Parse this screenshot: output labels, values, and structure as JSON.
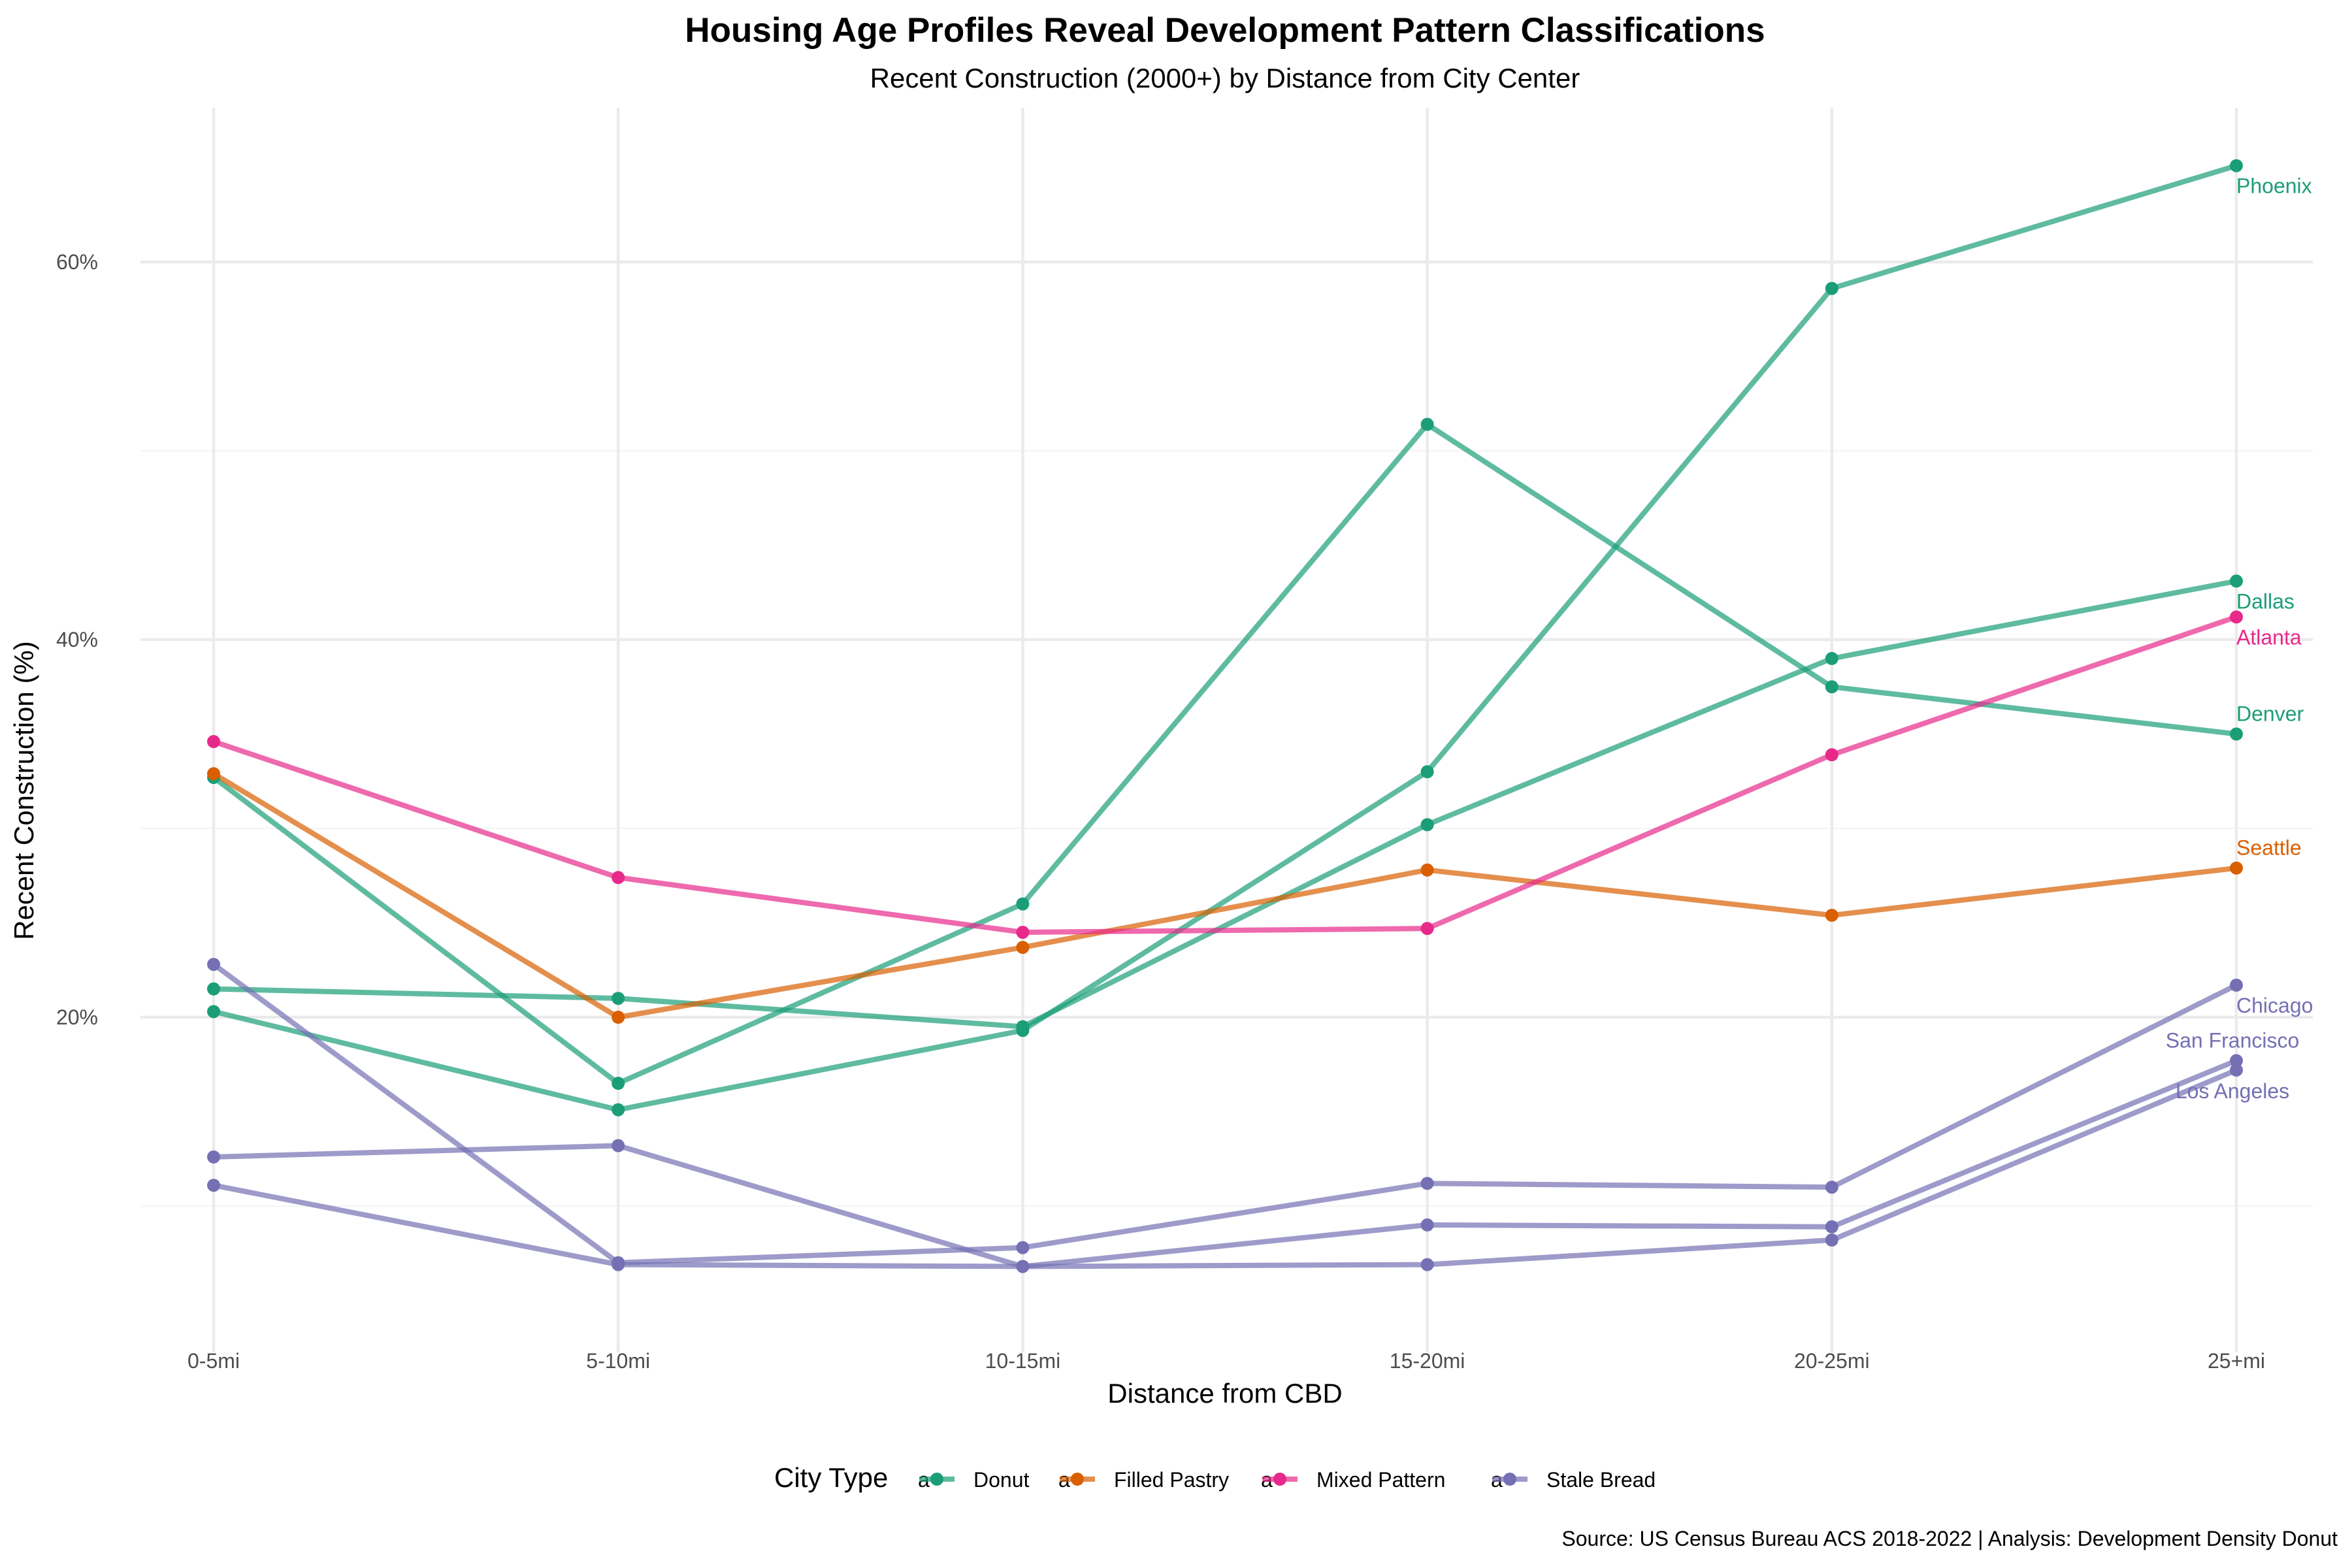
{
  "chart_data": {
    "type": "line",
    "title": "Housing Age Profiles Reveal Development Pattern Classifications",
    "subtitle": "Recent Construction (2000+) by Distance from City Center",
    "xlabel": "Distance from CBD",
    "ylabel": "Recent Construction (%)",
    "categories": [
      "0-5mi",
      "5-10mi",
      "10-15mi",
      "15-20mi",
      "20-25mi",
      "25+mi"
    ],
    "ylim": [
      2,
      68
    ],
    "yticks": [
      20,
      40,
      60
    ],
    "ytick_labels": [
      "20%",
      "40%",
      "60%"
    ],
    "grid": true,
    "legend": {
      "title": "City Type",
      "position": "bottom",
      "key_glyph": "a",
      "entries": [
        {
          "name": "Donut",
          "color": "#1b9e77"
        },
        {
          "name": "Filled Pastry",
          "color": "#d95f02"
        },
        {
          "name": "Mixed Pattern",
          "color": "#e7298a"
        },
        {
          "name": "Stale Bread",
          "color": "#7570b3"
        }
      ]
    },
    "series": [
      {
        "name": "Phoenix",
        "type": "Donut",
        "values": [
          20.3,
          15.1,
          19.3,
          33.0,
          58.6,
          65.1
        ]
      },
      {
        "name": "Dallas",
        "type": "Donut",
        "values": [
          21.5,
          21.0,
          19.5,
          30.2,
          39.0,
          43.1
        ]
      },
      {
        "name": "Denver",
        "type": "Donut",
        "values": [
          32.7,
          16.5,
          26.0,
          51.4,
          37.5,
          35.0
        ]
      },
      {
        "name": "Seattle",
        "type": "Filled Pastry",
        "values": [
          32.9,
          20.0,
          23.7,
          27.8,
          25.4,
          27.9
        ]
      },
      {
        "name": "Atlanta",
        "type": "Mixed Pattern",
        "values": [
          34.6,
          27.4,
          24.5,
          24.7,
          33.9,
          41.2
        ]
      },
      {
        "name": "Chicago",
        "type": "Stale Bread",
        "values": [
          22.8,
          7.0,
          7.8,
          11.2,
          11.0,
          21.7
        ]
      },
      {
        "name": "San Francisco",
        "type": "Stale Bread",
        "values": [
          12.6,
          13.2,
          6.8,
          9.0,
          8.9,
          17.7
        ]
      },
      {
        "name": "Los Angeles",
        "type": "Stale Bread",
        "values": [
          11.1,
          6.9,
          6.8,
          6.9,
          8.2,
          17.2
        ]
      }
    ],
    "labels": [
      {
        "text": "Phoenix",
        "series": "Phoenix",
        "color": "#1b9e77",
        "anchor": "start"
      },
      {
        "text": "Dallas",
        "series": "Dallas",
        "color": "#1b9e77",
        "anchor": "start"
      },
      {
        "text": "Atlanta",
        "series": "Atlanta",
        "color": "#e7298a",
        "anchor": "start"
      },
      {
        "text": "Denver",
        "series": "Denver",
        "color": "#1b9e77",
        "anchor": "start"
      },
      {
        "text": "Seattle",
        "series": "Seattle",
        "color": "#d95f02",
        "anchor": "start"
      },
      {
        "text": "Chicago",
        "series": "Chicago",
        "color": "#7570b3",
        "anchor": "start"
      },
      {
        "text": "San Francisco",
        "series": "San Francisco",
        "color": "#7570b3",
        "anchor": "middle"
      },
      {
        "text": "Los Angeles",
        "series": "Los Angeles",
        "color": "#7570b3",
        "anchor": "middle"
      }
    ],
    "caption": "Source: US Census Bureau ACS 2018-2022 | Analysis: Development Density Donut"
  },
  "colors": {
    "Donut": "#1b9e77",
    "Filled Pastry": "#d95f02",
    "Mixed Pattern": "#e7298a",
    "Stale Bread": "#7570b3",
    "grid": "#ebebeb"
  }
}
